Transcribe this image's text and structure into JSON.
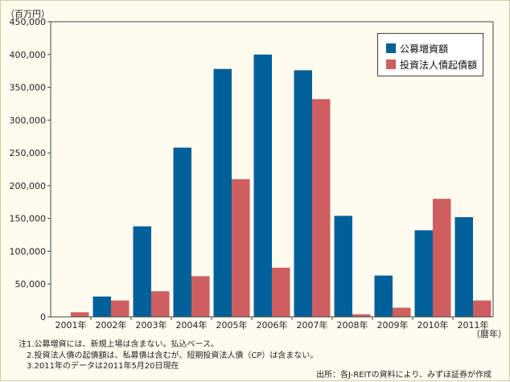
{
  "chart_data": {
    "type": "bar",
    "unit_label": "（百万円）",
    "x_unit": "（暦年）",
    "categories": [
      "2001年",
      "2002年",
      "2003年",
      "2004年",
      "2005年",
      "2006年",
      "2007年",
      "2008年",
      "2009年",
      "2010年",
      "2011年"
    ],
    "series": [
      {
        "name": "公募増資額",
        "color": "#00609a",
        "values": [
          0,
          31000,
          138000,
          258000,
          378000,
          400000,
          376000,
          154000,
          63000,
          132000,
          152000
        ]
      },
      {
        "name": "投資法人債起債額",
        "color": "#cd5f60",
        "values": [
          7000,
          25000,
          39000,
          62000,
          210000,
          75000,
          332000,
          4000,
          14000,
          180000,
          25000
        ]
      }
    ],
    "ylim": [
      0,
      450000
    ],
    "yticks": [
      0,
      50000,
      100000,
      150000,
      200000,
      250000,
      300000,
      350000,
      400000,
      450000
    ],
    "ytick_labels": [
      "0",
      "50,000",
      "100,000",
      "150,000",
      "200,000",
      "250,000",
      "300,000",
      "350,000",
      "400,000",
      "450,000"
    ],
    "legend_position": "top-right",
    "grid": false
  },
  "notes": [
    "注1.公募増資には、新規上場は含まない。払込ベース。",
    "2.投資法人債の起債額は、私募債は含むが、短期投資法人債（CP）は含まない。",
    "3.2011年のデータは2011年5月20日現在"
  ],
  "source": "出所：各J-REITの資料により、みずほ証券が作成"
}
